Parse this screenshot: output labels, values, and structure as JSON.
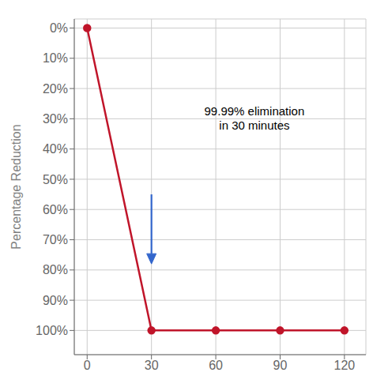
{
  "chart_data": {
    "type": "line",
    "x": [
      0,
      30,
      60,
      90,
      120
    ],
    "values": [
      0,
      100,
      100,
      100,
      100
    ],
    "color": "#C0152A",
    "marker": "circle",
    "ylabel": "Percentage Reduction",
    "xlim": [
      -6,
      130
    ],
    "xticks": [
      0,
      30,
      60,
      90,
      120
    ],
    "ylim": [
      108,
      -3
    ],
    "yticks": [
      {
        "value": 0,
        "label": "0%"
      },
      {
        "value": 10,
        "label": "10%"
      },
      {
        "value": 20,
        "label": "20%"
      },
      {
        "value": 30,
        "label": "30%"
      },
      {
        "value": 40,
        "label": "40%"
      },
      {
        "value": 50,
        "label": "50%"
      },
      {
        "value": 60,
        "label": "60%"
      },
      {
        "value": 70,
        "label": "70%"
      },
      {
        "value": 80,
        "label": "80%"
      },
      {
        "value": 90,
        "label": "90%"
      },
      {
        "value": 100,
        "label": "100%"
      }
    ],
    "grid": true,
    "annotations": [
      {
        "text": "99.99% elimination\nin 30 minutes",
        "x": 78,
        "y": 30
      }
    ],
    "arrows": [
      {
        "x": 30,
        "y_start": 55,
        "y_end": 78,
        "color": "#3366CC"
      }
    ]
  }
}
